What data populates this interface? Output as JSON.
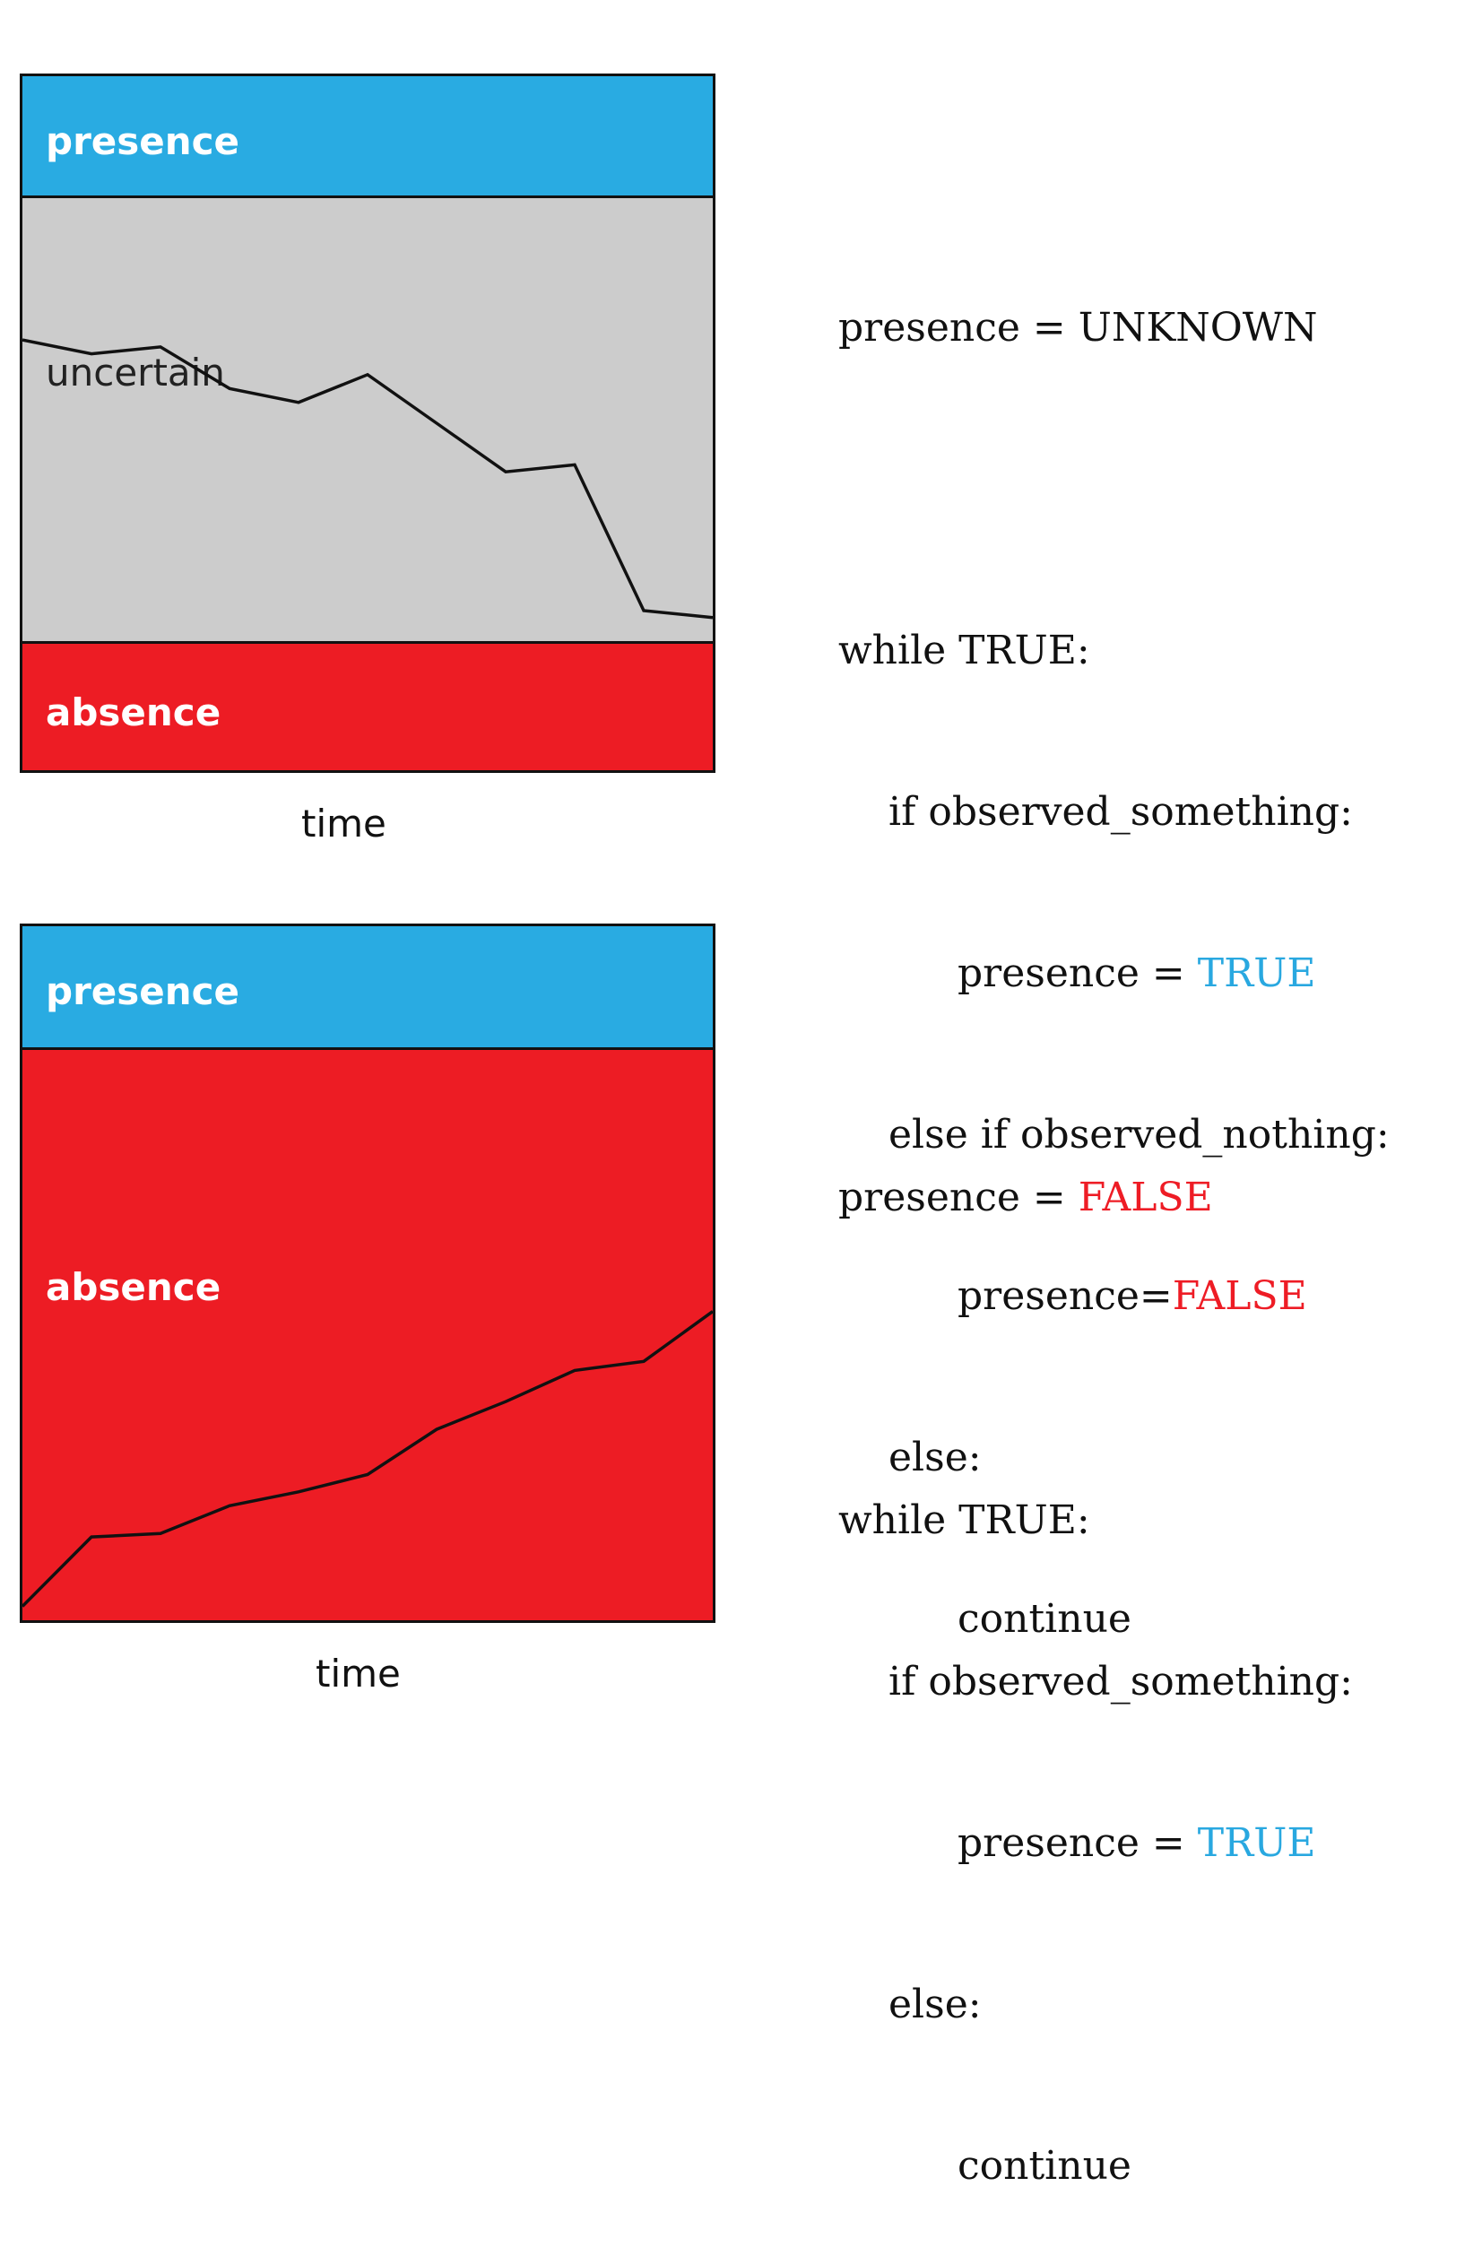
{
  "colors": {
    "presence": "#29abe2",
    "uncertain": "#cccccc",
    "absence": "#ed1c24",
    "value_true": "#29a8e0",
    "value_false": "#ee1c25"
  },
  "top": {
    "bands": {
      "presence": "presence",
      "uncertain": "uncertain",
      "absence": "absence"
    },
    "xlabel": "time",
    "trend": [
      0.62,
      0.6,
      0.61,
      0.55,
      0.53,
      0.57,
      0.5,
      0.43,
      0.44,
      0.23,
      0.22
    ],
    "code": {
      "l1_var": "presence",
      "l1_eq": "=",
      "l1_val": "UNKNOWN",
      "l2": "while TRUE:",
      "l3": "if observed_something:",
      "l4_var": "presence",
      "l4_eq": "=",
      "l4_val": "TRUE",
      "l5": "else if observed_nothing:",
      "l6_var": "presence",
      "l6_eq": "=",
      "l6_val": "FALSE",
      "l7": "else:",
      "l8": "continue"
    }
  },
  "bottom": {
    "bands": {
      "presence": "presence",
      "absence": "absence"
    },
    "xlabel": "time",
    "trend": [
      0.02,
      0.12,
      0.125,
      0.165,
      0.185,
      0.21,
      0.275,
      0.315,
      0.36,
      0.373,
      0.445
    ],
    "code": {
      "l1_var": "presence",
      "l1_eq": "=",
      "l1_val": "FALSE",
      "l2": "while TRUE:",
      "l3": "if observed_something:",
      "l4_var": "presence",
      "l4_eq": "=",
      "l4_val": "TRUE",
      "l5": "else:",
      "l6": "continue"
    }
  }
}
